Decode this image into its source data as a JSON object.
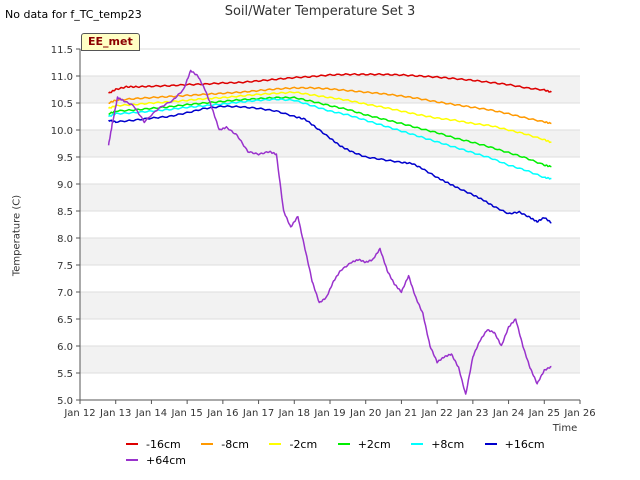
{
  "corner_note": "No data for f_TC_temp23",
  "badge": "EE_met",
  "chart_data": {
    "type": "line",
    "title": "Soil/Water Temperature Set 3",
    "xlabel": "Time",
    "ylabel": "Temperature (C)",
    "ylim": [
      5.0,
      11.5
    ],
    "xlim": [
      12,
      26
    ],
    "yticks": [
      "5.0",
      "5.5",
      "6.0",
      "6.5",
      "7.0",
      "7.5",
      "8.0",
      "8.5",
      "9.0",
      "9.5",
      "10.0",
      "10.5",
      "11.0",
      "11.5"
    ],
    "xticks": [
      "Jan 12",
      "Jan 13",
      "Jan 14",
      "Jan 15",
      "Jan 16",
      "Jan 17",
      "Jan 18",
      "Jan 19",
      "Jan 20",
      "Jan 21",
      "Jan 22",
      "Jan 23",
      "Jan 24",
      "Jan 25",
      "Jan 26"
    ],
    "grid": true,
    "legend_position": "bottom",
    "series": [
      {
        "name": "-16cm",
        "color": "#dd0000",
        "x": [
          12.8,
          13,
          13.3,
          13.6,
          14,
          14.5,
          15,
          15.5,
          16,
          16.5,
          17,
          17.5,
          18,
          18.5,
          19,
          19.5,
          20,
          20.5,
          21,
          21.5,
          22,
          22.5,
          23,
          23.5,
          24,
          24.5,
          25,
          25.2
        ],
        "y": [
          10.68,
          10.75,
          10.8,
          10.8,
          10.81,
          10.82,
          10.84,
          10.85,
          10.87,
          10.88,
          10.91,
          10.94,
          10.97,
          10.99,
          11.02,
          11.03,
          11.03,
          11.03,
          11.02,
          11.0,
          10.98,
          10.95,
          10.92,
          10.88,
          10.84,
          10.78,
          10.74,
          10.7
        ]
      },
      {
        "name": "-8cm",
        "color": "#ff9900",
        "x": [
          12.8,
          13,
          13.5,
          14,
          14.5,
          15,
          15.5,
          16,
          16.5,
          17,
          17.5,
          18,
          18.5,
          19,
          19.5,
          20,
          20.5,
          21,
          21.5,
          22,
          22.5,
          23,
          23.5,
          24,
          24.5,
          25,
          25.2
        ],
        "y": [
          10.5,
          10.55,
          10.58,
          10.6,
          10.62,
          10.64,
          10.66,
          10.68,
          10.7,
          10.73,
          10.76,
          10.78,
          10.78,
          10.76,
          10.73,
          10.7,
          10.67,
          10.63,
          10.58,
          10.52,
          10.47,
          10.42,
          10.37,
          10.3,
          10.22,
          10.15,
          10.12
        ]
      },
      {
        "name": "-2cm",
        "color": "#ffff00",
        "x": [
          12.8,
          13,
          13.5,
          14,
          14.5,
          15,
          15.5,
          16,
          16.5,
          17,
          17.5,
          18,
          18.5,
          19,
          19.5,
          20,
          20.5,
          21,
          21.5,
          22,
          22.5,
          23,
          23.5,
          24,
          24.5,
          25,
          25.2
        ],
        "y": [
          10.4,
          10.45,
          10.47,
          10.5,
          10.52,
          10.55,
          10.58,
          10.6,
          10.63,
          10.66,
          10.68,
          10.7,
          10.65,
          10.6,
          10.55,
          10.48,
          10.42,
          10.35,
          10.28,
          10.22,
          10.18,
          10.12,
          10.08,
          10.0,
          9.92,
          9.82,
          9.77
        ]
      },
      {
        "name": "+2cm",
        "color": "#00ee00",
        "x": [
          12.8,
          13,
          13.5,
          14,
          14.5,
          15,
          15.5,
          16,
          16.5,
          17,
          17.5,
          18,
          18.5,
          19,
          19.5,
          20,
          20.5,
          21,
          21.5,
          22,
          22.5,
          23,
          23.5,
          24,
          24.5,
          25,
          25.2
        ],
        "y": [
          10.3,
          10.35,
          10.37,
          10.4,
          10.43,
          10.47,
          10.5,
          10.53,
          10.56,
          10.58,
          10.6,
          10.6,
          10.53,
          10.45,
          10.38,
          10.28,
          10.2,
          10.12,
          10.03,
          9.95,
          9.85,
          9.77,
          9.68,
          9.58,
          9.48,
          9.35,
          9.32
        ]
      },
      {
        "name": "+8cm",
        "color": "#00ffff",
        "x": [
          12.8,
          13,
          13.5,
          14,
          14.5,
          15,
          15.5,
          16,
          16.5,
          17,
          17.5,
          18,
          18.5,
          19,
          19.5,
          20,
          20.5,
          21,
          21.5,
          22,
          22.5,
          23,
          23.5,
          24,
          24.5,
          25,
          25.2
        ],
        "y": [
          10.25,
          10.3,
          10.32,
          10.35,
          10.38,
          10.42,
          10.45,
          10.48,
          10.52,
          10.55,
          10.57,
          10.55,
          10.45,
          10.35,
          10.28,
          10.18,
          10.08,
          9.98,
          9.88,
          9.78,
          9.68,
          9.58,
          9.48,
          9.35,
          9.25,
          9.12,
          9.1
        ]
      },
      {
        "name": "+16cm",
        "color": "#0000cc",
        "x": [
          12.8,
          13,
          13.5,
          14,
          14.5,
          15,
          15.5,
          16,
          16.5,
          17,
          17.5,
          18,
          18.3,
          18.6,
          19,
          19.3,
          19.6,
          20,
          20.5,
          21,
          21.3,
          21.6,
          22,
          22.3,
          22.6,
          23,
          23.3,
          23.6,
          24,
          24.3,
          24.6,
          24.8,
          25,
          25.2
        ],
        "y": [
          10.18,
          10.15,
          10.18,
          10.22,
          10.25,
          10.32,
          10.4,
          10.44,
          10.43,
          10.4,
          10.35,
          10.25,
          10.2,
          10.05,
          9.85,
          9.7,
          9.6,
          9.5,
          9.45,
          9.4,
          9.38,
          9.28,
          9.12,
          9.02,
          8.92,
          8.8,
          8.7,
          8.58,
          8.45,
          8.48,
          8.38,
          8.3,
          8.38,
          8.28
        ]
      },
      {
        "name": "+64cm",
        "color": "#9932cc",
        "x": [
          12.8,
          12.9,
          13.05,
          13.2,
          13.5,
          13.8,
          14.2,
          14.6,
          14.9,
          15.1,
          15.3,
          15.5,
          15.7,
          15.9,
          16.1,
          16.4,
          16.7,
          17,
          17.3,
          17.5,
          17.7,
          17.9,
          18.1,
          18.3,
          18.5,
          18.7,
          18.9,
          19.1,
          19.3,
          19.6,
          19.8,
          20,
          20.2,
          20.4,
          20.6,
          20.8,
          21,
          21.2,
          21.4,
          21.6,
          21.8,
          22,
          22.2,
          22.4,
          22.6,
          22.8,
          23,
          23.2,
          23.4,
          23.6,
          23.8,
          24,
          24.2,
          24.4,
          24.6,
          24.8,
          25,
          25.2
        ],
        "y": [
          9.72,
          10.1,
          10.6,
          10.55,
          10.45,
          10.15,
          10.4,
          10.55,
          10.75,
          11.1,
          11.0,
          10.75,
          10.4,
          10.0,
          10.05,
          9.9,
          9.6,
          9.55,
          9.6,
          9.55,
          8.5,
          8.2,
          8.4,
          7.8,
          7.2,
          6.8,
          6.9,
          7.2,
          7.4,
          7.55,
          7.6,
          7.55,
          7.6,
          7.8,
          7.4,
          7.15,
          7.0,
          7.3,
          6.9,
          6.6,
          6.0,
          5.7,
          5.8,
          5.85,
          5.6,
          5.1,
          5.8,
          6.1,
          6.3,
          6.25,
          6.0,
          6.35,
          6.5,
          6.0,
          5.6,
          5.3,
          5.55,
          5.62
        ]
      }
    ]
  }
}
